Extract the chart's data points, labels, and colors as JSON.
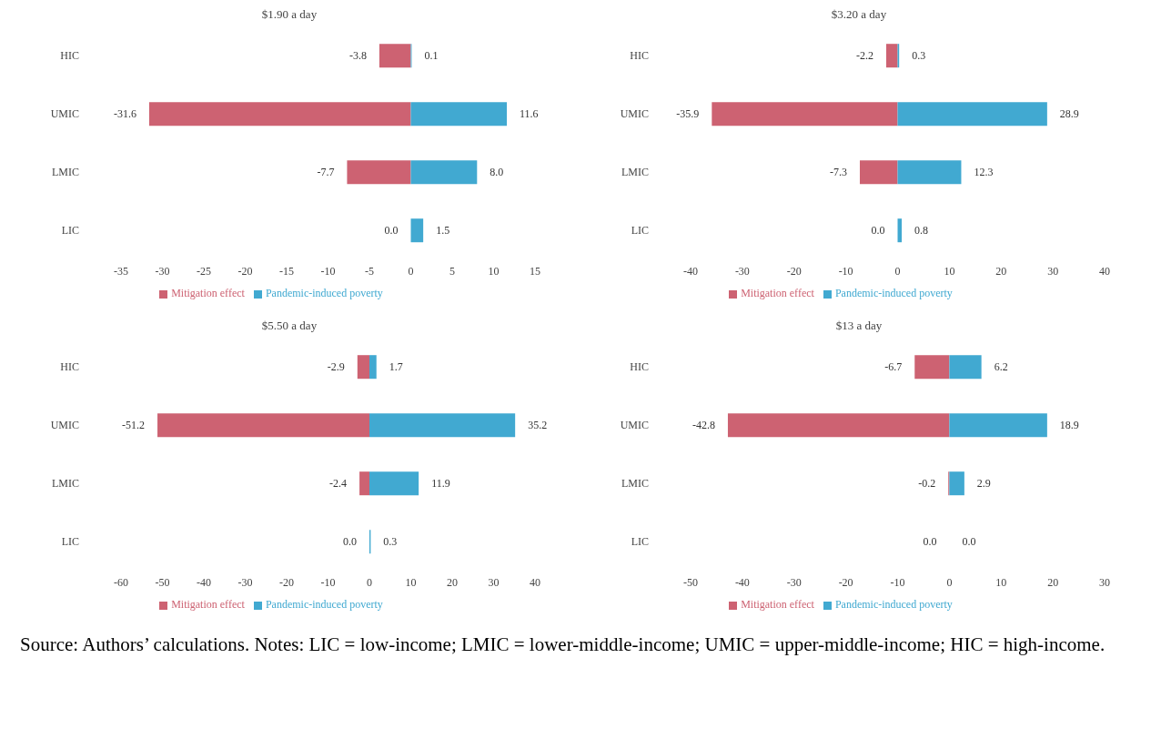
{
  "chart_data": [
    {
      "type": "bar",
      "orientation": "horizontal",
      "stacked": true,
      "title": "$1.90 a day",
      "categories": [
        "HIC",
        "UMIC",
        "LMIC",
        "LIC"
      ],
      "xlim": [
        -35,
        15
      ],
      "xticks": [
        -35,
        -30,
        -25,
        -20,
        -15,
        -10,
        -5,
        0,
        5,
        10,
        15
      ],
      "legend": "bottom",
      "series": [
        {
          "name": "Mitigation effect",
          "color": "#cd6272",
          "values": [
            -3.8,
            -31.6,
            -7.7,
            0
          ],
          "value_labels": [
            "-3.8",
            "-31.6",
            "-7.7",
            "0.0"
          ]
        },
        {
          "name": "Pandemic-induced poverty",
          "color": "#41a9d1",
          "values": [
            0.1,
            11.6,
            8.0,
            1.5
          ],
          "value_labels": [
            "0.1",
            "11.6",
            "8.0",
            "1.5"
          ]
        }
      ]
    },
    {
      "type": "bar",
      "orientation": "horizontal",
      "stacked": true,
      "title": "$3.20 a day",
      "categories": [
        "HIC",
        "UMIC",
        "LMIC",
        "LIC"
      ],
      "xlim": [
        -40,
        40
      ],
      "xticks": [
        -40,
        -30,
        -20,
        -10,
        0,
        10,
        20,
        30,
        40
      ],
      "legend": "bottom",
      "series": [
        {
          "name": "Mitigation effect",
          "color": "#cd6272",
          "values": [
            -2.2,
            -35.9,
            -7.3,
            0
          ],
          "value_labels": [
            "-2.2",
            "-35.9",
            "-7.3",
            "0.0"
          ]
        },
        {
          "name": "Pandemic-induced poverty",
          "color": "#41a9d1",
          "values": [
            0.3,
            28.9,
            12.3,
            0.8
          ],
          "value_labels": [
            "0.3",
            "28.9",
            "12.3",
            "0.8"
          ]
        }
      ]
    },
    {
      "type": "bar",
      "orientation": "horizontal",
      "stacked": true,
      "title": "$5.50 a day",
      "categories": [
        "HIC",
        "UMIC",
        "LMIC",
        "LIC"
      ],
      "xlim": [
        -60,
        40
      ],
      "xticks": [
        -60,
        -50,
        -40,
        -30,
        -20,
        -10,
        0,
        10,
        20,
        30,
        40
      ],
      "legend": "bottom",
      "series": [
        {
          "name": "Mitigation effect",
          "color": "#cd6272",
          "values": [
            -2.9,
            -51.2,
            -2.4,
            0
          ],
          "value_labels": [
            "-2.9",
            "-51.2",
            "-2.4",
            "0.0"
          ]
        },
        {
          "name": "Pandemic-induced poverty",
          "color": "#41a9d1",
          "values": [
            1.7,
            35.2,
            11.9,
            0.3
          ],
          "value_labels": [
            "1.7",
            "35.2",
            "11.9",
            "0.3"
          ]
        }
      ]
    },
    {
      "type": "bar",
      "orientation": "horizontal",
      "stacked": true,
      "title": "$13 a day",
      "categories": [
        "HIC",
        "UMIC",
        "LMIC",
        "LIC"
      ],
      "xlim": [
        -50,
        30
      ],
      "xticks": [
        -50,
        -40,
        -30,
        -20,
        -10,
        0,
        10,
        20,
        30
      ],
      "legend": "bottom",
      "annotations": [
        "Source: Authors’ calculations. Notes: LIC = low-income; LMIC = lower-middle-income; UMIC = upper-middle-income; HIC = high-income."
      ],
      "series": [
        {
          "name": "Mitigation effect",
          "color": "#cd6272",
          "values": [
            -6.7,
            -42.8,
            -0.2,
            0
          ],
          "value_labels": [
            "-6.7",
            "-42.8",
            "-0.2",
            "0.0"
          ]
        },
        {
          "name": "Pandemic-induced poverty",
          "color": "#41a9d1",
          "values": [
            6.2,
            18.9,
            2.9,
            0.0
          ],
          "value_labels": [
            "6.2",
            "18.9",
            "2.9",
            "0.0"
          ]
        }
      ]
    }
  ]
}
